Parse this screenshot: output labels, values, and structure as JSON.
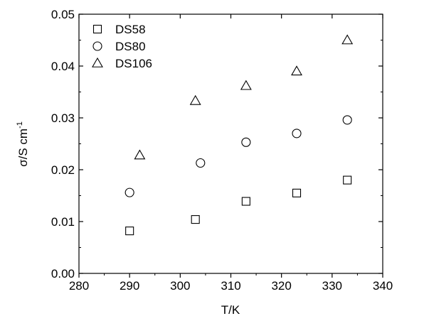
{
  "chart_data": {
    "type": "scatter",
    "xlabel": "T/K",
    "ylabel_main": "σ/S cm",
    "ylabel_sup": "-1",
    "xlim": [
      280,
      340
    ],
    "ylim": [
      0.0,
      0.05
    ],
    "xticks": [
      "280",
      "290",
      "300",
      "310",
      "320",
      "330",
      "340"
    ],
    "yticks": [
      "0.00",
      "0.01",
      "0.02",
      "0.03",
      "0.04",
      "0.05"
    ],
    "grid": false,
    "legend_position": "top-left",
    "series": [
      {
        "name": "DS58",
        "marker": "square",
        "x": [
          290,
          303,
          313,
          323,
          333
        ],
        "y": [
          0.0082,
          0.0104,
          0.0139,
          0.0155,
          0.018
        ]
      },
      {
        "name": "DS80",
        "marker": "circle",
        "x": [
          290,
          304,
          313,
          323,
          333
        ],
        "y": [
          0.0156,
          0.0213,
          0.0253,
          0.027,
          0.0296
        ]
      },
      {
        "name": "DS106",
        "marker": "triangle",
        "x": [
          292,
          303,
          313,
          323,
          333
        ],
        "y": [
          0.0228,
          0.0333,
          0.0362,
          0.039,
          0.045
        ]
      }
    ]
  }
}
